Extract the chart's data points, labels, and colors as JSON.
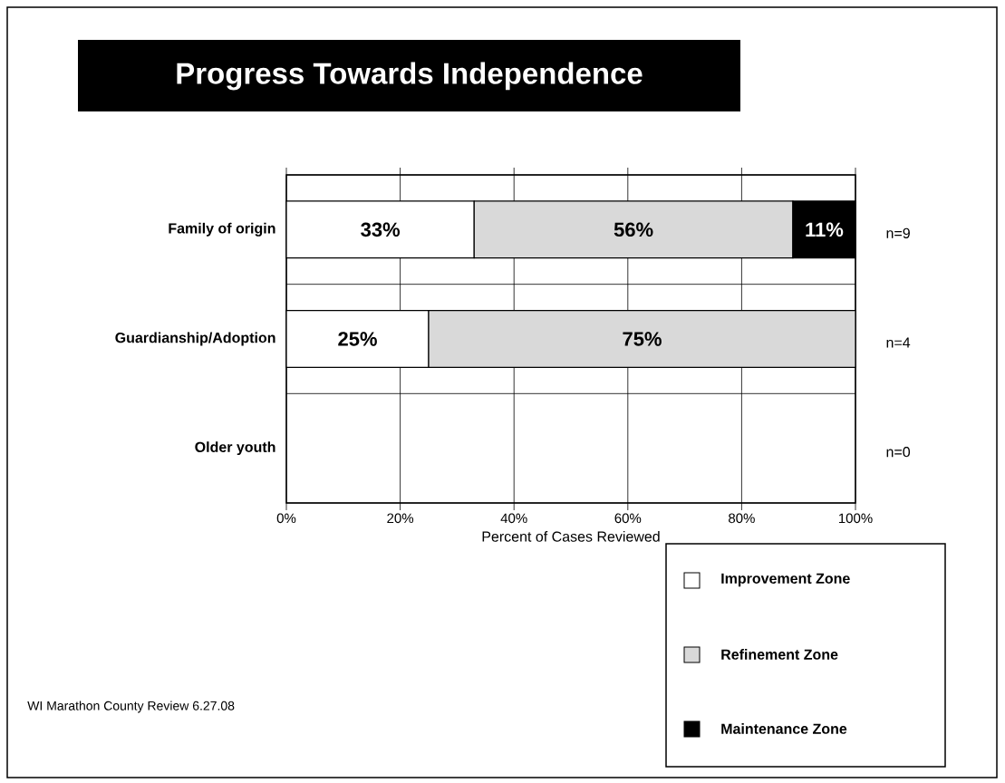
{
  "chart_data": {
    "type": "bar",
    "orientation": "horizontal",
    "stacked": true,
    "title": "Progress Towards Independence",
    "xlabel": "Percent of Cases Reviewed",
    "categories": [
      "Family of origin",
      "Guardianship/Adoption",
      "Older youth"
    ],
    "series": [
      {
        "name": "Improvement Zone",
        "color": "#ffffff",
        "values": [
          33,
          25,
          null
        ],
        "value_labels": [
          "33%",
          "25%",
          null
        ]
      },
      {
        "name": "Refinement Zone",
        "color": "#d9d9d9",
        "values": [
          56,
          75,
          null
        ],
        "value_labels": [
          "56%",
          "75%",
          null
        ]
      },
      {
        "name": "Maintenance Zone",
        "color": "#000000",
        "values": [
          11,
          null,
          null
        ],
        "value_labels": [
          "11%",
          null,
          null
        ]
      }
    ],
    "xlim": [
      0,
      100
    ],
    "xticks": [
      {
        "value": 0,
        "label": "0%"
      },
      {
        "value": 20,
        "label": "20%"
      },
      {
        "value": 40,
        "label": "40%"
      },
      {
        "value": 60,
        "label": "60%"
      },
      {
        "value": 80,
        "label": "80%"
      },
      {
        "value": 100,
        "label": "100%"
      }
    ],
    "grid": true,
    "legend": "bottom right",
    "annotations": [
      "n=9",
      "n=4",
      "n=0",
      "WI Marathon County Review 6.27.08"
    ]
  }
}
